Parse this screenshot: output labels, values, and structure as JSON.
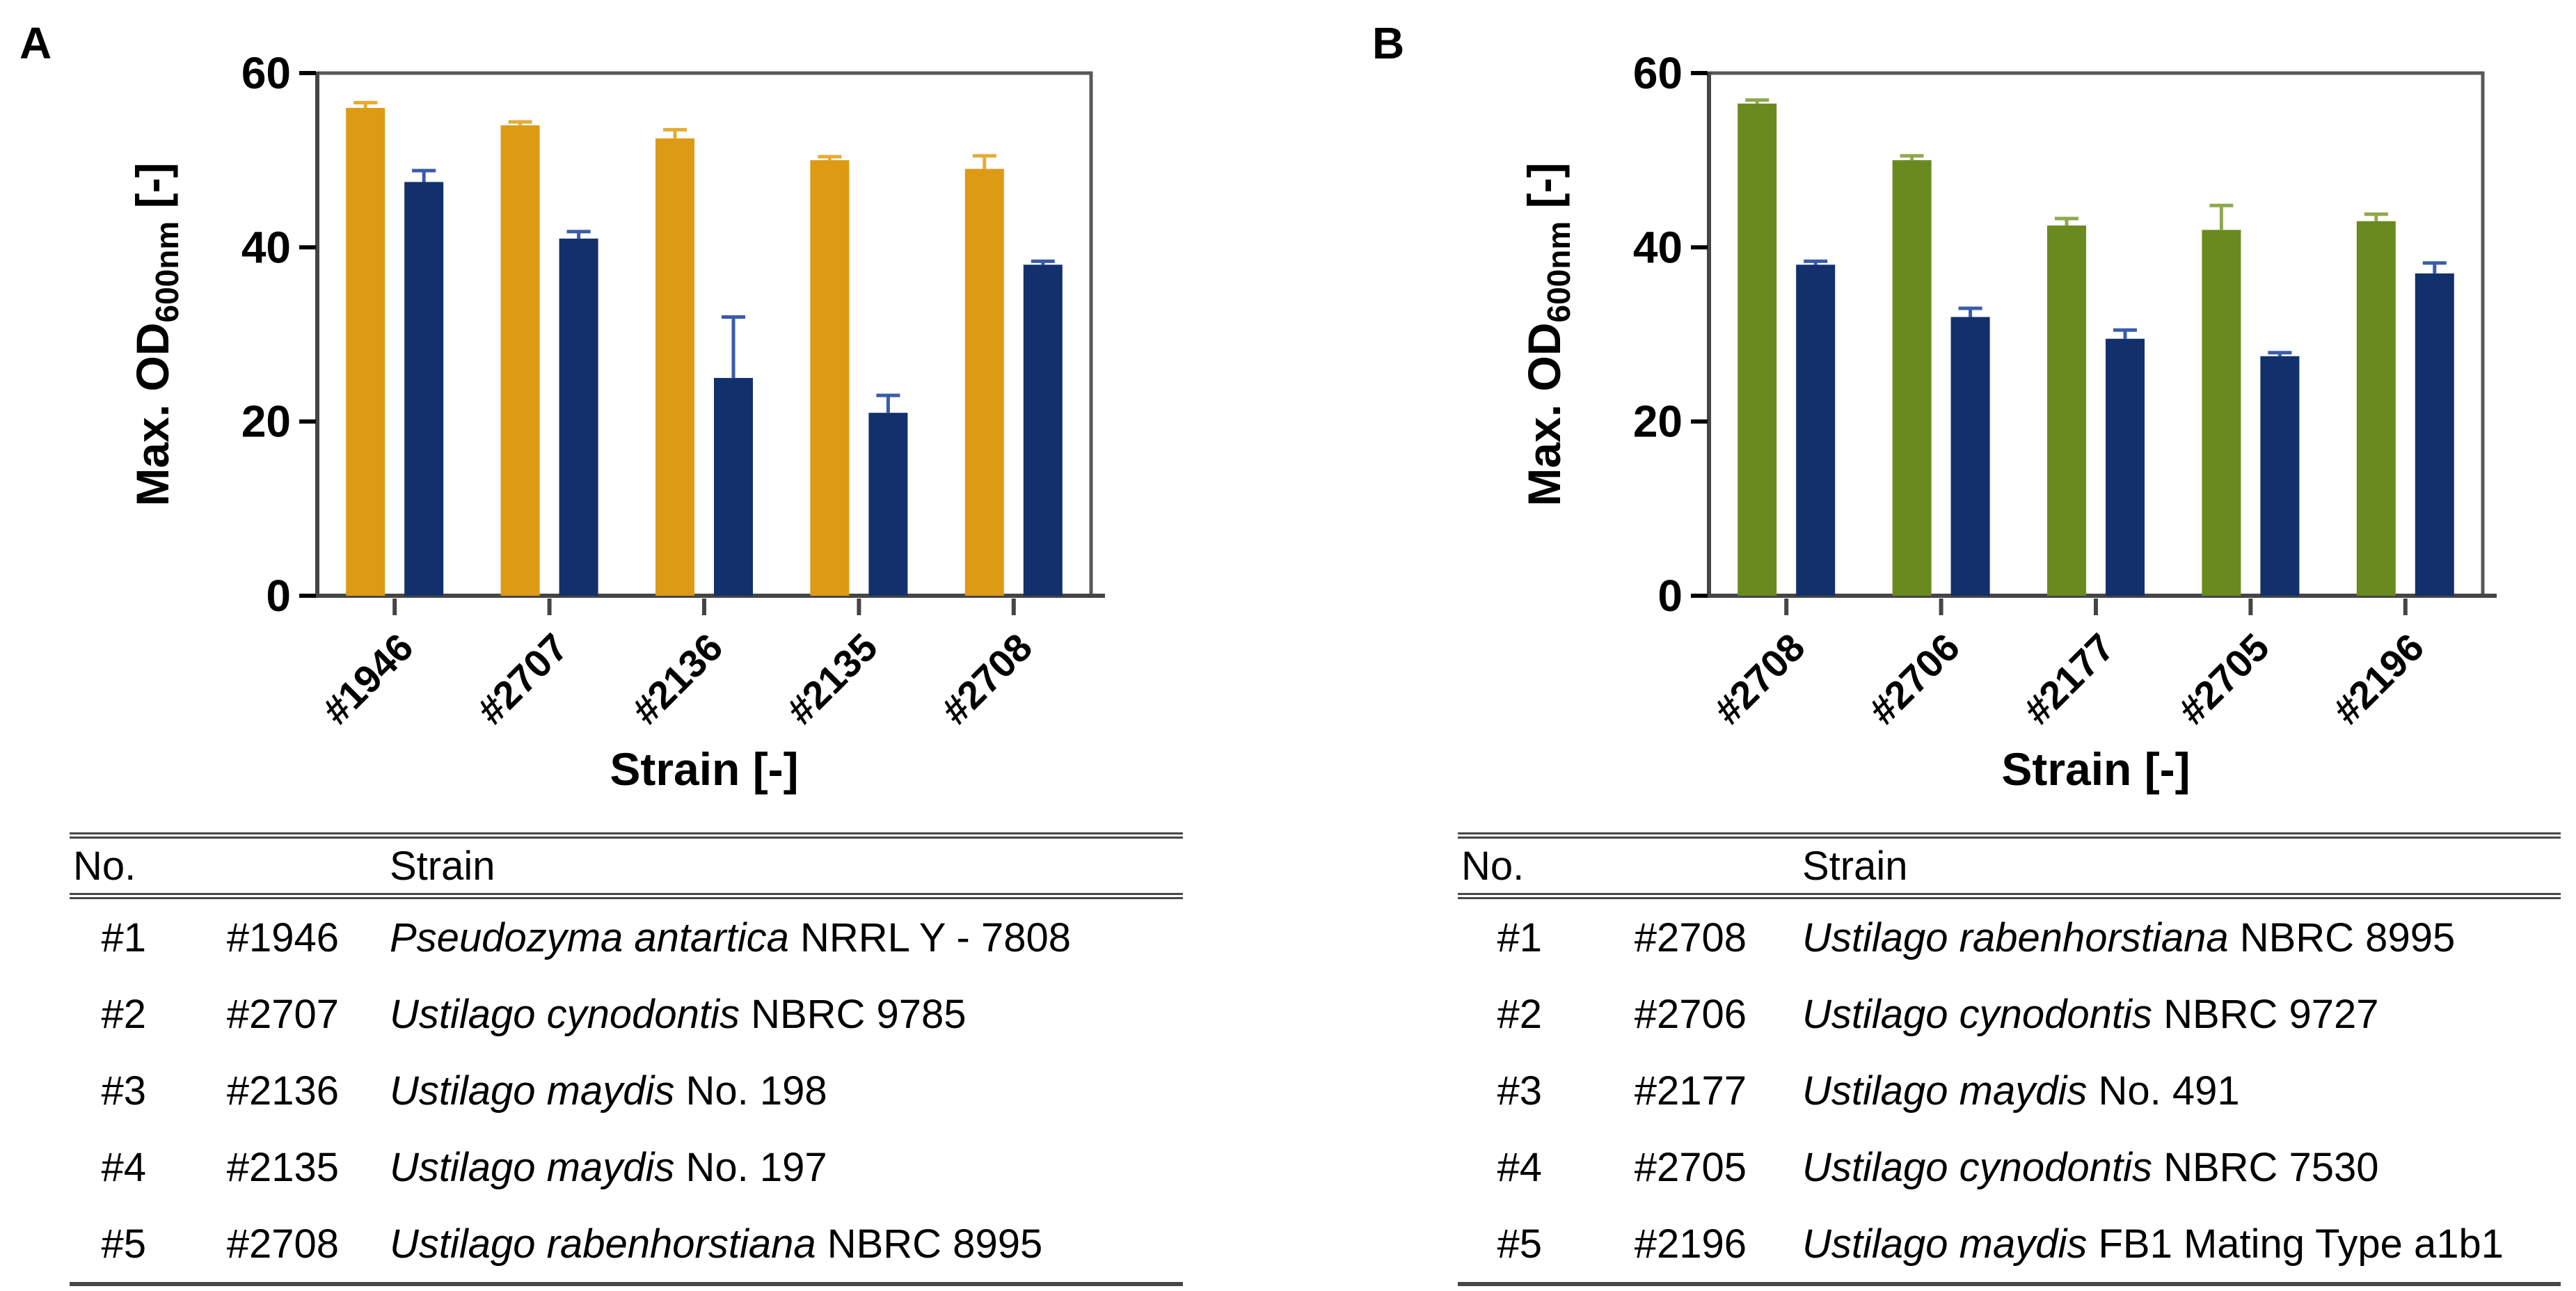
{
  "style": {
    "background": "#ffffff",
    "axis_dark": "#454547",
    "frame_gray": "#58585a",
    "rule_color": "#474747",
    "text_color": "#000000"
  },
  "panels": [
    {
      "label": "A",
      "table": {
        "headers": {
          "no": "No.",
          "strain": "Strain"
        },
        "rows": [
          {
            "no": "#1",
            "id": "#1946",
            "species": "Pseudozyma antartica",
            "suffix": "NRRL Y - 7808"
          },
          {
            "no": "#2",
            "id": "#2707",
            "species": "Ustilago cynodontis",
            "suffix": "NBRC 9785"
          },
          {
            "no": "#3",
            "id": "#2136",
            "species": "Ustilago maydis",
            "suffix": "No. 198"
          },
          {
            "no": "#4",
            "id": "#2135",
            "species": "Ustilago maydis",
            "suffix": "No. 197"
          },
          {
            "no": "#5",
            "id": "#2708",
            "species": "Ustilago rabenhorstiana",
            "suffix": "NBRC 8995"
          }
        ]
      }
    },
    {
      "label": "B",
      "table": {
        "headers": {
          "no": "No.",
          "strain": "Strain"
        },
        "rows": [
          {
            "no": "#1",
            "id": "#2708",
            "species": "Ustilago rabenhorstiana",
            "suffix": "NBRC 8995"
          },
          {
            "no": "#2",
            "id": "#2706",
            "species": "Ustilago cynodontis",
            "suffix": "NBRC 9727"
          },
          {
            "no": "#3",
            "id": "#2177",
            "species": "Ustilago maydis",
            "suffix": "No. 491"
          },
          {
            "no": "#4",
            "id": "#2705",
            "species": "Ustilago cynodontis",
            "suffix": "NBRC 7530"
          },
          {
            "no": "#5",
            "id": "#2196",
            "species": "Ustilago maydis",
            "suffix": "FB1 Mating Type a1b1"
          }
        ]
      }
    }
  ],
  "chart_data": [
    {
      "type": "bar",
      "title": "",
      "xlabel": "Strain [-]",
      "ylabel": "Max. OD600nm [-]",
      "ylabel_parts": {
        "main": "Max. OD",
        "sub": "600nm",
        "unit": " [-]"
      },
      "ylim": [
        0,
        60
      ],
      "yticks": [
        0,
        20,
        40,
        60
      ],
      "grid": false,
      "legend": null,
      "categories": [
        "#1946",
        "#2707",
        "#2136",
        "#2135",
        "#2708"
      ],
      "series": [
        {
          "name": "preculture-orange",
          "color": "#DD9A14",
          "error_color": "#E7AB33",
          "values": [
            56,
            54,
            52.5,
            50,
            49
          ],
          "errors": [
            0.6,
            0.4,
            1.0,
            0.4,
            1.5
          ]
        },
        {
          "name": "main-culture-navy",
          "color": "#12306B",
          "error_color": "#3A5CA8",
          "values": [
            47.5,
            41,
            25,
            21,
            38
          ],
          "errors": [
            1.3,
            0.8,
            7.0,
            2.0,
            0.4
          ]
        }
      ]
    },
    {
      "type": "bar",
      "title": "",
      "xlabel": "Strain [-]",
      "ylabel": "Max. OD600nm [-]",
      "ylabel_parts": {
        "main": "Max. OD",
        "sub": "600nm",
        "unit": " [-]"
      },
      "ylim": [
        0,
        60
      ],
      "yticks": [
        0,
        20,
        40,
        60
      ],
      "grid": false,
      "legend": null,
      "categories": [
        "#2708",
        "#2706",
        "#2177",
        "#2705",
        "#2196"
      ],
      "series": [
        {
          "name": "preculture-green",
          "color": "#6A8A1F",
          "error_color": "#8FA84E",
          "values": [
            56.5,
            50,
            42.5,
            42,
            43
          ],
          "errors": [
            0.4,
            0.5,
            0.8,
            2.8,
            0.8
          ]
        },
        {
          "name": "main-culture-navy",
          "color": "#12306B",
          "error_color": "#3A5CA8",
          "values": [
            38,
            32,
            29.5,
            27.5,
            37
          ],
          "errors": [
            0.4,
            1.0,
            1.0,
            0.4,
            1.2
          ]
        }
      ]
    }
  ],
  "table_layout_note": "columns: No., strain id, strain name (species italic + collection id upright)"
}
